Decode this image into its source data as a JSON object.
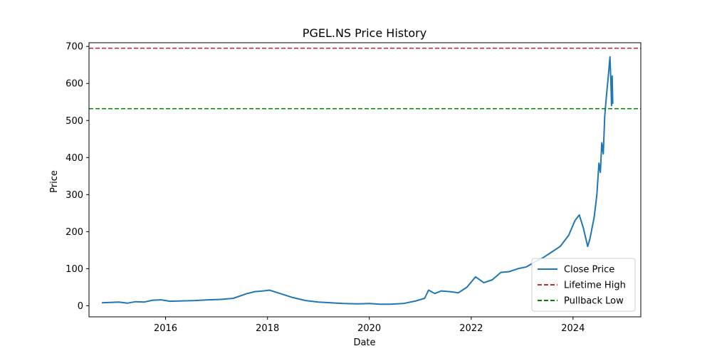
{
  "chart_data": {
    "type": "line",
    "title": "PGEL.NS Price History",
    "xlabel": "Date",
    "ylabel": "Price",
    "xlim": [
      "2014-07-01",
      "2025-05-01"
    ],
    "ylim": [
      -30,
      710
    ],
    "x_ticks": [
      "2016",
      "2018",
      "2020",
      "2022",
      "2024"
    ],
    "y_ticks": [
      0,
      100,
      200,
      300,
      400,
      500,
      600,
      700
    ],
    "grid": false,
    "legend_position": "lower-right",
    "series": [
      {
        "name": "Close Price",
        "color": "#1f77b4",
        "style": "solid",
        "points": [
          [
            "2014-10-01",
            8
          ],
          [
            "2014-12-01",
            9
          ],
          [
            "2015-02-01",
            10
          ],
          [
            "2015-04-01",
            7
          ],
          [
            "2015-06-01",
            11
          ],
          [
            "2015-08-01",
            10
          ],
          [
            "2015-10-01",
            15
          ],
          [
            "2015-12-01",
            16
          ],
          [
            "2016-02-01",
            12
          ],
          [
            "2016-05-01",
            13
          ],
          [
            "2016-08-01",
            14
          ],
          [
            "2016-11-01",
            16
          ],
          [
            "2017-02-01",
            17
          ],
          [
            "2017-05-01",
            20
          ],
          [
            "2017-08-01",
            32
          ],
          [
            "2017-10-01",
            38
          ],
          [
            "2017-12-01",
            40
          ],
          [
            "2018-01-15",
            42
          ],
          [
            "2018-04-01",
            33
          ],
          [
            "2018-07-01",
            22
          ],
          [
            "2018-10-01",
            14
          ],
          [
            "2019-01-01",
            10
          ],
          [
            "2019-04-01",
            8
          ],
          [
            "2019-07-01",
            6
          ],
          [
            "2019-10-01",
            5
          ],
          [
            "2020-01-01",
            6
          ],
          [
            "2020-03-15",
            4
          ],
          [
            "2020-06-01",
            4
          ],
          [
            "2020-09-01",
            6
          ],
          [
            "2020-12-01",
            13
          ],
          [
            "2021-02-01",
            20
          ],
          [
            "2021-03-01",
            42
          ],
          [
            "2021-04-15",
            33
          ],
          [
            "2021-06-01",
            40
          ],
          [
            "2021-08-01",
            38
          ],
          [
            "2021-10-01",
            35
          ],
          [
            "2021-12-01",
            50
          ],
          [
            "2022-02-01",
            78
          ],
          [
            "2022-04-01",
            62
          ],
          [
            "2022-06-01",
            70
          ],
          [
            "2022-08-01",
            90
          ],
          [
            "2022-10-01",
            92
          ],
          [
            "2022-12-01",
            100
          ],
          [
            "2023-02-01",
            105
          ],
          [
            "2023-04-01",
            118
          ],
          [
            "2023-06-01",
            130
          ],
          [
            "2023-08-01",
            145
          ],
          [
            "2023-10-01",
            160
          ],
          [
            "2023-12-01",
            190
          ],
          [
            "2024-01-15",
            230
          ],
          [
            "2024-02-15",
            245
          ],
          [
            "2024-03-15",
            210
          ],
          [
            "2024-04-15",
            160
          ],
          [
            "2024-05-01",
            180
          ],
          [
            "2024-06-01",
            240
          ],
          [
            "2024-06-20",
            300
          ],
          [
            "2024-07-05",
            385
          ],
          [
            "2024-07-15",
            360
          ],
          [
            "2024-07-25",
            440
          ],
          [
            "2024-08-05",
            410
          ],
          [
            "2024-08-15",
            510
          ],
          [
            "2024-08-25",
            555
          ],
          [
            "2024-09-05",
            600
          ],
          [
            "2024-09-15",
            640
          ],
          [
            "2024-09-22",
            672
          ],
          [
            "2024-09-28",
            610
          ],
          [
            "2024-10-03",
            540
          ],
          [
            "2024-10-08",
            620
          ],
          [
            "2024-10-12",
            545
          ]
        ]
      }
    ],
    "reference_lines": [
      {
        "name": "Lifetime High",
        "y": 695,
        "color": "#d62728",
        "style": "dashed"
      },
      {
        "name": "Pullback Low",
        "y": 532,
        "color": "#008000",
        "style": "dashed"
      }
    ]
  }
}
